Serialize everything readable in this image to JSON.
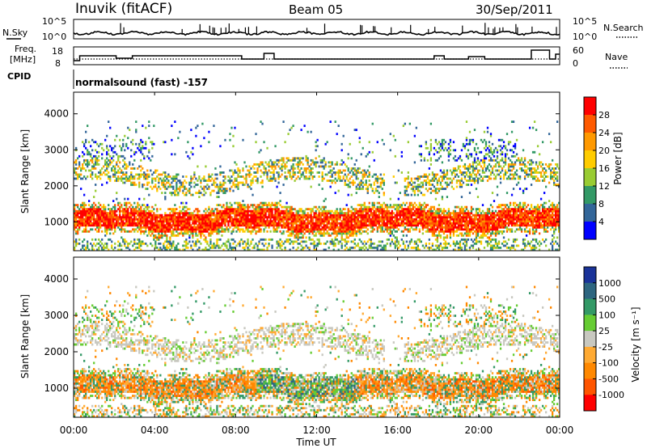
{
  "header": {
    "station": "Inuvik (fitACF)",
    "beam": "Beam 05",
    "date": "30/Sep/2011"
  },
  "noise_panel": {
    "left_label": "N.Sky",
    "right_label": "N.Search",
    "left_ticks": [
      "10^5",
      "10^0"
    ],
    "right_ticks": [
      "10^5",
      "10^0"
    ]
  },
  "freq_panel": {
    "left_label_1": "Freq.",
    "left_label_2": "[MHz]",
    "right_label": "Nave",
    "left_ticks": [
      "18",
      "8"
    ],
    "right_ticks": [
      "60",
      "0"
    ]
  },
  "cpid": {
    "label": "CPID",
    "value": "normalsound (fast) -157"
  },
  "chart_data": [
    {
      "type": "heatmap",
      "name": "power",
      "ylabel": "Slant Range [km]",
      "y_ticks": [
        "4000",
        "3000",
        "2000",
        "1000"
      ],
      "y_tick_values": [
        4000,
        3000,
        2000,
        1000
      ],
      "ylim": [
        200,
        4600
      ],
      "xlim": [
        0,
        24
      ],
      "colorbar_label": "Power [dB]",
      "colorbar_ticks": [
        "28",
        "24",
        "20",
        "16",
        "12",
        "8",
        "4"
      ],
      "colorbar_colors": [
        "#ff0000",
        "#ff5a00",
        "#ff9900",
        "#ffcc00",
        "#99cc33",
        "#339966",
        "#336699",
        "#0000ff"
      ]
    },
    {
      "type": "heatmap",
      "name": "velocity",
      "ylabel": "Slant Range [km]",
      "y_ticks": [
        "4000",
        "3000",
        "2000",
        "1000"
      ],
      "y_tick_values": [
        4000,
        3000,
        2000,
        1000
      ],
      "ylim": [
        200,
        4600
      ],
      "xlim": [
        0,
        24
      ],
      "colorbar_label": "Velocity [m s⁻¹]",
      "colorbar_ticks": [
        "1000",
        "500",
        "100",
        "25",
        "-25",
        "-100",
        "-500",
        "-1000"
      ],
      "colorbar_colors": [
        "#1a3399",
        "#2e6680",
        "#339966",
        "#66cc33",
        "#c8c8c0",
        "#ffaa33",
        "#ff8800",
        "#ff5500",
        "#ff0000"
      ]
    }
  ],
  "x_axis": {
    "label": "Time UT",
    "ticks": [
      "00:00",
      "04:00",
      "08:00",
      "12:00",
      "16:00",
      "20:00",
      "00:00"
    ],
    "tick_values": [
      0,
      4,
      8,
      12,
      16,
      20,
      24
    ]
  }
}
